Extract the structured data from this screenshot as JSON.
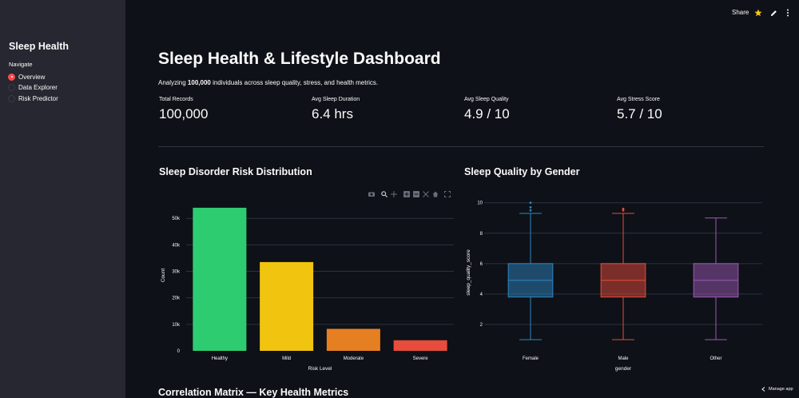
{
  "sidebar": {
    "title": "Sleep Health",
    "nav_label": "Navigate",
    "items": [
      {
        "label": "Overview",
        "active": true
      },
      {
        "label": "Data Explorer",
        "active": false
      },
      {
        "label": "Risk Predictor",
        "active": false
      }
    ]
  },
  "header": {
    "share_label": "Share",
    "icons": [
      "star-icon",
      "edit-icon",
      "more-vertical-icon"
    ]
  },
  "main": {
    "title": "Sleep Health & Lifestyle Dashboard",
    "subtitle_prefix": "Analyzing ",
    "subtitle_bold": "100,000",
    "subtitle_suffix": " individuals across sleep quality, stress, and health metrics.",
    "metrics": [
      {
        "label": "Total Records",
        "value": "100,000"
      },
      {
        "label": "Avg Sleep Duration",
        "value": "6.4 hrs"
      },
      {
        "label": "Avg Sleep Quality",
        "value": "4.9 / 10"
      },
      {
        "label": "Avg Stress Score",
        "value": "5.7 / 10"
      }
    ],
    "section_risk": "Sleep Disorder Risk Distribution",
    "section_gender": "Sleep Quality by Gender",
    "section_corr": "Correlation Matrix — Key Health Metrics",
    "manage_app": "Manage app"
  },
  "colors": {
    "background": "#0e1117",
    "sidebar": "#262730",
    "accent": "#ff4b4b"
  },
  "chart_data": [
    {
      "type": "bar",
      "categories": [
        "Healthy",
        "Mild",
        "Moderate",
        "Severe"
      ],
      "values": [
        54000,
        33500,
        8300,
        4000
      ],
      "colors": [
        "#2ecc71",
        "#f1c40f",
        "#e67e22",
        "#e74c3c"
      ],
      "xlabel": "Risk Level",
      "ylabel": "Count",
      "yticks": [
        0,
        10000,
        20000,
        30000,
        40000,
        50000
      ],
      "ytick_labels": [
        "0",
        "10k",
        "20k",
        "30k",
        "40k",
        "50k"
      ],
      "ylim": [
        0,
        57000
      ],
      "grid": true
    },
    {
      "type": "box",
      "categories": [
        "Female",
        "Male",
        "Other"
      ],
      "colors": [
        "#2e86c1",
        "#e74c3c",
        "#9b59b6"
      ],
      "boxes": [
        {
          "min": 1,
          "q1": 3.8,
          "median": 4.9,
          "q3": 6.0,
          "max": 9.3,
          "outliers": [
            9.5,
            9.7,
            10.0
          ]
        },
        {
          "min": 1,
          "q1": 3.8,
          "median": 4.9,
          "q3": 6.0,
          "max": 9.3,
          "outliers": [
            9.5,
            9.6
          ]
        },
        {
          "min": 1,
          "q1": 3.8,
          "median": 4.9,
          "q3": 6.0,
          "max": 9.0,
          "outliers": []
        }
      ],
      "xlabel": "gender",
      "ylabel": "sleep_quality_score",
      "yticks": [
        2,
        4,
        6,
        8,
        10
      ],
      "ylim": [
        0,
        10.3
      ],
      "grid": true
    }
  ]
}
